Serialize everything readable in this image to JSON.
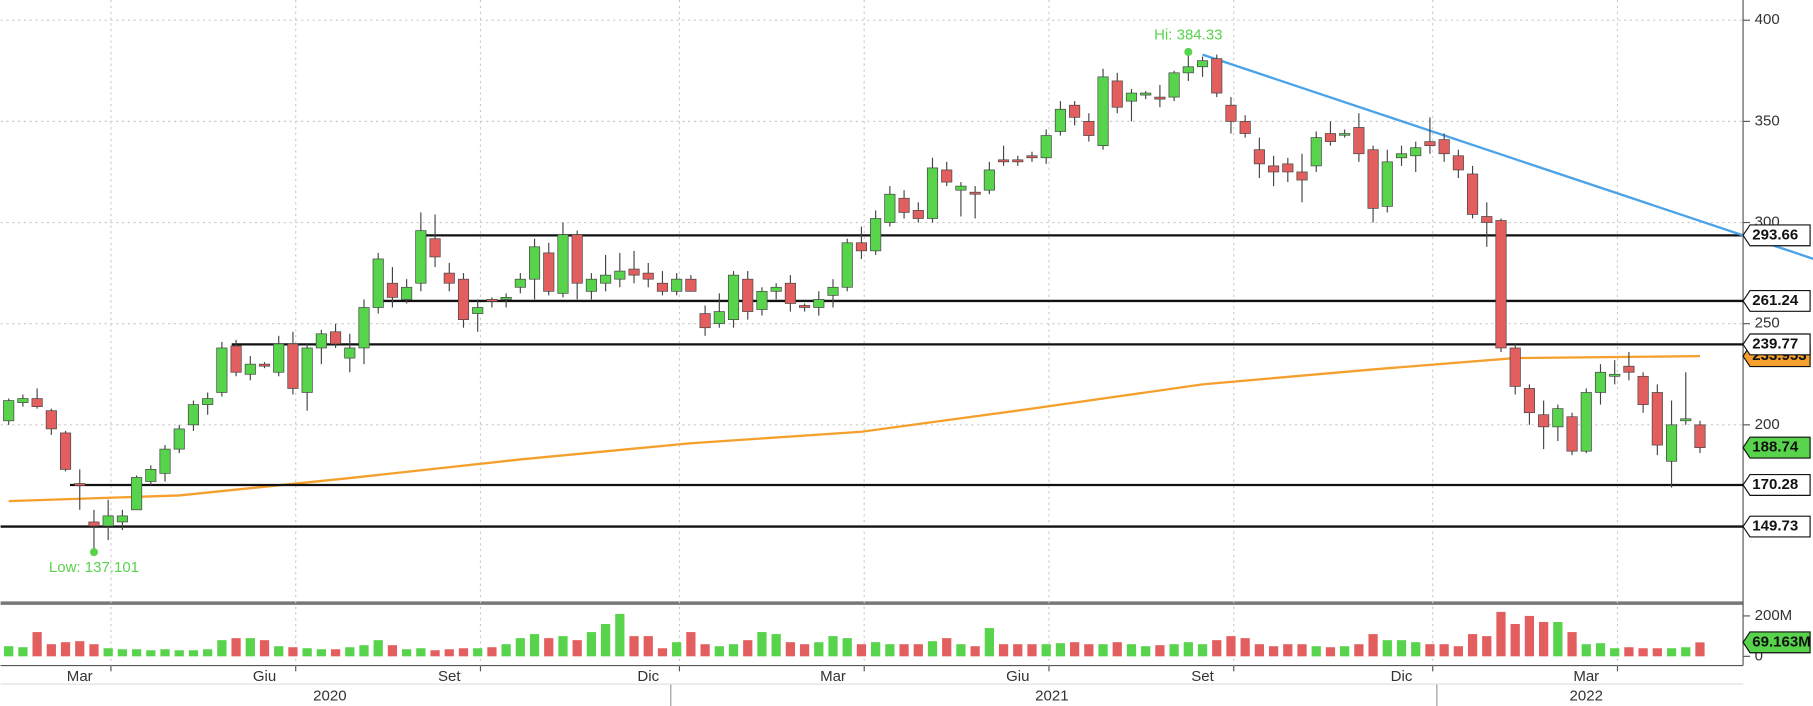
{
  "chart_data": {
    "type": "candlestick",
    "open": [
      202,
      211,
      213,
      207,
      196,
      171,
      152,
      150,
      152,
      158,
      172,
      176,
      188,
      200,
      210,
      216,
      239,
      225,
      230,
      226,
      240,
      216,
      238,
      246,
      233,
      238,
      258,
      270,
      262,
      270,
      292,
      275,
      272,
      255,
      262,
      262,
      268,
      272,
      285,
      265,
      294,
      266,
      270,
      272,
      277,
      275,
      270,
      266,
      272,
      255,
      250,
      252,
      272,
      257,
      266,
      270,
      259,
      258,
      264,
      268,
      290,
      286,
      300,
      312,
      306,
      302,
      326,
      316,
      315,
      316,
      331,
      331,
      333,
      332,
      345,
      358,
      350,
      338,
      370,
      360,
      363,
      362,
      362,
      374,
      377,
      381,
      358,
      350,
      336,
      328,
      329,
      325,
      328,
      344,
      344,
      347,
      336,
      308,
      332,
      333,
      340,
      341,
      333,
      324,
      303,
      301,
      238,
      218,
      205,
      199,
      204,
      187,
      216,
      224,
      229,
      224,
      216,
      182,
      202,
      200
    ],
    "high": [
      213,
      215,
      218,
      208,
      197,
      178,
      158,
      163,
      158,
      175,
      180,
      190,
      200,
      212,
      216,
      241,
      242,
      234,
      231,
      244,
      246,
      240,
      247,
      250,
      245,
      262,
      285,
      278,
      272,
      305,
      304,
      280,
      275,
      262,
      263,
      265,
      275,
      292,
      290,
      300,
      296,
      275,
      284,
      285,
      286,
      280,
      276,
      275,
      274,
      259,
      265,
      276,
      276,
      268,
      270,
      274,
      260,
      266,
      272,
      292,
      298,
      306,
      318,
      316,
      310,
      332,
      330,
      320,
      318,
      330,
      338,
      333,
      335,
      346,
      360,
      360,
      354,
      376,
      374,
      366,
      365,
      368,
      375,
      384.33,
      382,
      383,
      362,
      353,
      342,
      333,
      332,
      334,
      345,
      350,
      346,
      354,
      338,
      336,
      338,
      340,
      352,
      344,
      336,
      328,
      310,
      302,
      240,
      220,
      212,
      210,
      206,
      218,
      230,
      232,
      236,
      226,
      220,
      212,
      226,
      202
    ],
    "low": [
      200,
      209,
      208,
      195,
      177,
      158,
      137.101,
      143,
      148,
      158,
      170,
      172,
      186,
      197,
      205,
      214,
      224,
      222,
      228,
      224,
      215,
      207,
      230,
      238,
      226,
      230,
      255,
      258,
      260,
      266,
      278,
      266,
      248,
      246,
      258,
      258,
      265,
      262,
      264,
      263,
      262,
      262,
      266,
      268,
      270,
      268,
      264,
      264,
      266,
      244,
      248,
      248,
      252,
      254,
      262,
      256,
      256,
      254,
      258,
      266,
      282,
      284,
      298,
      302,
      300,
      300,
      318,
      303,
      302,
      314,
      328,
      328,
      330,
      329,
      343,
      348,
      340,
      336,
      354,
      350,
      361,
      357,
      360,
      370,
      372,
      362,
      344,
      342,
      322,
      318,
      320,
      310,
      325,
      338,
      342,
      330,
      300,
      305,
      328,
      325,
      334,
      330,
      322,
      302,
      288,
      236,
      215,
      200,
      188,
      192,
      185,
      186,
      210,
      220,
      222,
      206,
      185,
      169,
      200,
      186
    ],
    "close": [
      212,
      213,
      209,
      198,
      178,
      170,
      150,
      155,
      155,
      174,
      178,
      188,
      198,
      210,
      213,
      238,
      226,
      230,
      229,
      240,
      218,
      238,
      245,
      240,
      238,
      258,
      282,
      263,
      268,
      296,
      283,
      270,
      252,
      258,
      261,
      263,
      272,
      288,
      266,
      294,
      270,
      272,
      274,
      276,
      274,
      272,
      266,
      272,
      266,
      248,
      256,
      274,
      256,
      266,
      268,
      260,
      258,
      262,
      268,
      290,
      286,
      302,
      314,
      305,
      302,
      327,
      320,
      318,
      314,
      326,
      330,
      330,
      332,
      343,
      356,
      352,
      343,
      372,
      357,
      364,
      364,
      361,
      374,
      377,
      380,
      364,
      350,
      344,
      329,
      325,
      325,
      321,
      342,
      340,
      344,
      334,
      307,
      330,
      334,
      337,
      338,
      334,
      326,
      304,
      300,
      238,
      219,
      206,
      199,
      208,
      187,
      216,
      226,
      225,
      226,
      210,
      190,
      200,
      203,
      188.74
    ],
    "volume": [
      50,
      45,
      120,
      60,
      70,
      75,
      60,
      40,
      35,
      35,
      30,
      35,
      30,
      30,
      35,
      80,
      90,
      90,
      80,
      50,
      45,
      40,
      35,
      35,
      45,
      55,
      80,
      55,
      35,
      40,
      30,
      35,
      40,
      40,
      45,
      60,
      90,
      110,
      90,
      100,
      80,
      120,
      160,
      210,
      100,
      100,
      40,
      70,
      120,
      60,
      50,
      60,
      80,
      120,
      110,
      70,
      60,
      70,
      100,
      90,
      60,
      70,
      60,
      60,
      60,
      75,
      90,
      60,
      50,
      140,
      60,
      60,
      60,
      60,
      65,
      70,
      60,
      60,
      70,
      60,
      50,
      55,
      60,
      70,
      60,
      80,
      100,
      90,
      60,
      50,
      60,
      60,
      50,
      45,
      50,
      60,
      110,
      80,
      80,
      70,
      60,
      60,
      50,
      110,
      100,
      220,
      160,
      200,
      170,
      170,
      120,
      60,
      65,
      40,
      45,
      40,
      40,
      40,
      45,
      69.163
    ],
    "volume_last_label": "69.163M",
    "colors": {
      "up": "#57d34c",
      "down": "#e35f5f",
      "ma": "#f5a02c",
      "trend": "#4aa3e8"
    },
    "ylim": [
      113,
      410
    ],
    "yticks": [
      200,
      250,
      300,
      350,
      400
    ],
    "y2lim": [
      -40,
      246
    ],
    "y2ticks": [
      {
        "value": 200,
        "label": "200M"
      },
      0
    ],
    "grid": true,
    "levels": [
      293.66,
      261.24,
      239.77,
      170.28,
      149.73
    ],
    "ma": {
      "at": [
        0,
        12,
        24,
        36,
        48,
        60,
        72,
        84,
        96,
        106,
        119
      ],
      "values": [
        162.3,
        165.1,
        173.7,
        182.9,
        190.9,
        196.6,
        208,
        220,
        227.4,
        233,
        233.953
      ]
    },
    "trendline": {
      "at": [
        84,
        127
      ],
      "values": [
        383,
        282
      ]
    },
    "hi": {
      "label": "Hi: 384.33",
      "value": 384.33,
      "at": 83
    },
    "low_mark": {
      "label": "Low: 137.101",
      "value": 137.101,
      "at": 6
    },
    "months": [
      {
        "label": "Mar",
        "at": 5
      },
      {
        "label": "Giu",
        "at": 18
      },
      {
        "label": "Set",
        "at": 31
      },
      {
        "label": "Dic",
        "at": 45
      },
      {
        "label": "Mar",
        "at": 58
      },
      {
        "label": "Giu",
        "at": 71
      },
      {
        "label": "Set",
        "at": 84
      },
      {
        "label": "Dic",
        "at": 98
      },
      {
        "label": "Mar",
        "at": 111
      }
    ],
    "years": [
      {
        "label": "2020",
        "at": 22.6
      },
      {
        "label": "2021",
        "at": 73.4
      },
      {
        "label": "2022",
        "at": 111
      }
    ]
  }
}
